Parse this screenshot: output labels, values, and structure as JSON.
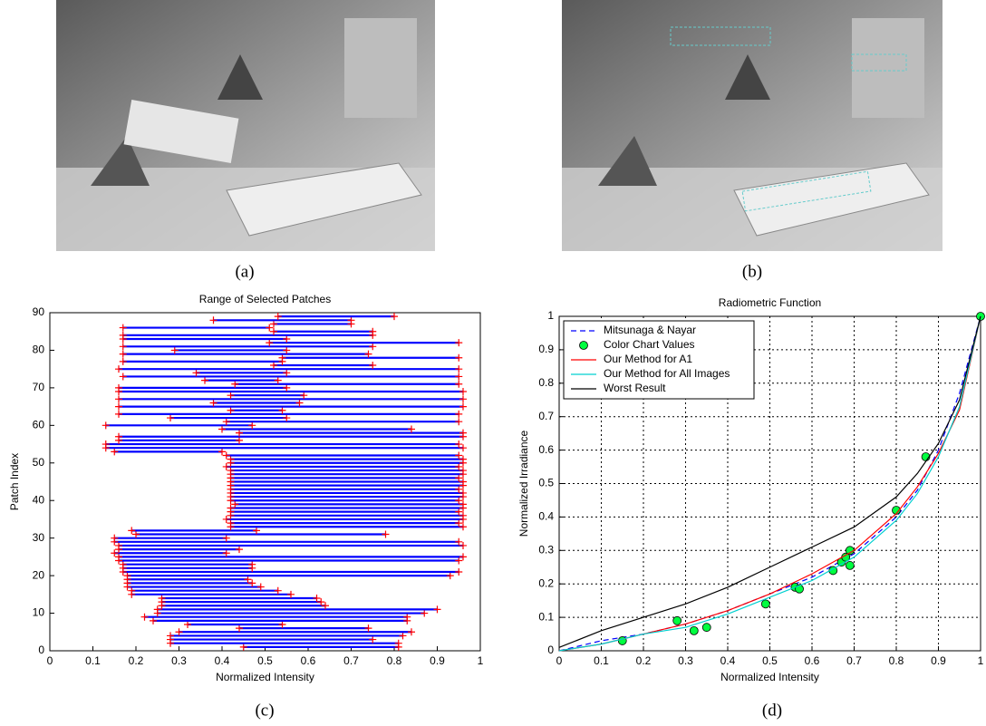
{
  "captions": [
    "(a)",
    "(b)",
    "(c)",
    "(d)"
  ],
  "chart_data": [
    {
      "type": "range",
      "title": "Range of Selected Patches",
      "xlabel": "Normalized Intensity",
      "ylabel": "Patch Index",
      "xlim": [
        0,
        1
      ],
      "xticks": [
        0,
        0.1,
        0.2,
        0.3,
        0.4,
        0.5,
        0.6,
        0.7,
        0.8,
        0.9,
        1
      ],
      "ylim": [
        0,
        90
      ],
      "yticks": [
        0,
        10,
        20,
        30,
        40,
        50,
        60,
        70,
        80,
        90
      ],
      "grid": false,
      "color": "#0000ff",
      "marker_color": "#ff0000",
      "y": [
        1,
        2,
        3,
        4,
        5,
        6,
        7,
        8,
        9,
        10,
        11,
        12,
        13,
        14,
        15,
        16,
        17,
        18,
        19,
        20,
        21,
        22,
        23,
        24,
        25,
        26,
        27,
        28,
        29,
        30,
        31,
        32,
        33,
        34,
        35,
        36,
        37,
        38,
        39,
        40,
        41,
        42,
        43,
        44,
        45,
        46,
        47,
        48,
        49,
        50,
        51,
        52,
        53,
        54,
        55,
        56,
        57,
        58,
        59,
        60,
        61,
        62,
        63,
        64,
        65,
        66,
        67,
        68,
        69,
        70,
        71,
        72,
        73,
        74,
        75,
        76,
        77,
        78,
        79,
        80,
        81,
        82,
        83,
        84,
        85,
        86,
        87,
        88,
        89
      ],
      "min": [
        0.45,
        0.28,
        0.28,
        0.28,
        0.3,
        0.44,
        0.32,
        0.24,
        0.22,
        0.25,
        0.25,
        0.26,
        0.26,
        0.26,
        0.19,
        0.19,
        0.18,
        0.18,
        0.18,
        0.18,
        0.17,
        0.17,
        0.17,
        0.16,
        0.16,
        0.15,
        0.16,
        0.16,
        0.15,
        0.15,
        0.2,
        0.19,
        0.42,
        0.42,
        0.41,
        0.42,
        0.42,
        0.42,
        0.43,
        0.42,
        0.42,
        0.42,
        0.42,
        0.42,
        0.42,
        0.42,
        0.42,
        0.42,
        0.41,
        0.42,
        0.42,
        0.41,
        0.15,
        0.13,
        0.13,
        0.16,
        0.16,
        0.44,
        0.4,
        0.13,
        0.41,
        0.28,
        0.16,
        0.42,
        0.16,
        0.38,
        0.16,
        0.42,
        0.16,
        0.16,
        0.43,
        0.36,
        0.17,
        0.34,
        0.16,
        0.52,
        0.17,
        0.54,
        0.17,
        0.29,
        0.17,
        0.51,
        0.17,
        0.17,
        0.52,
        0.17,
        0.52,
        0.38,
        0.53
      ],
      "max": [
        0.81,
        0.81,
        0.75,
        0.82,
        0.84,
        0.74,
        0.54,
        0.83,
        0.83,
        0.87,
        0.9,
        0.64,
        0.63,
        0.62,
        0.56,
        0.53,
        0.49,
        0.47,
        0.46,
        0.93,
        0.95,
        0.47,
        0.47,
        0.95,
        0.96,
        0.41,
        0.44,
        0.96,
        0.95,
        0.41,
        0.78,
        0.48,
        0.96,
        0.95,
        0.96,
        0.96,
        0.95,
        0.96,
        0.96,
        0.95,
        0.96,
        0.96,
        0.95,
        0.96,
        0.96,
        0.95,
        0.96,
        0.96,
        0.95,
        0.96,
        0.96,
        0.95,
        0.4,
        0.96,
        0.95,
        0.44,
        0.96,
        0.96,
        0.84,
        0.47,
        0.95,
        0.55,
        0.95,
        0.54,
        0.96,
        0.58,
        0.96,
        0.59,
        0.96,
        0.55,
        0.95,
        0.53,
        0.95,
        0.55,
        0.95,
        0.75,
        0.54,
        0.95,
        0.74,
        0.55,
        0.75,
        0.95,
        0.55,
        0.75,
        0.75,
        0.51,
        0.7,
        0.7,
        0.8
      ]
    },
    {
      "type": "line",
      "title": "Radiometric Function",
      "xlabel": "Normalized Intensity",
      "ylabel": "Normalized Irradiance",
      "xlim": [
        0,
        1
      ],
      "xticks": [
        0,
        0.1,
        0.2,
        0.3,
        0.4,
        0.5,
        0.6,
        0.7,
        0.8,
        0.9,
        1
      ],
      "ylim": [
        0,
        1
      ],
      "yticks": [
        0,
        0.1,
        0.2,
        0.3,
        0.4,
        0.5,
        0.6,
        0.7,
        0.8,
        0.9,
        1
      ],
      "grid": true,
      "legend": "upper left",
      "series": [
        {
          "name": "Mitsunaga & Nayar",
          "color": "#0000ff",
          "style": "dashed",
          "x": [
            0,
            0.1,
            0.2,
            0.3,
            0.4,
            0.5,
            0.6,
            0.7,
            0.8,
            0.85,
            0.9,
            0.95,
            1
          ],
          "values": [
            0,
            0.03,
            0.05,
            0.08,
            0.12,
            0.17,
            0.22,
            0.29,
            0.4,
            0.48,
            0.6,
            0.77,
            1
          ]
        },
        {
          "name": "Color Chart Values",
          "color": "#00ff40",
          "style": "markers",
          "x": [
            0.15,
            0.28,
            0.32,
            0.35,
            0.49,
            0.56,
            0.57,
            0.65,
            0.67,
            0.68,
            0.69,
            0.69,
            0.8,
            0.87,
            1
          ],
          "values": [
            0.03,
            0.09,
            0.06,
            0.07,
            0.14,
            0.19,
            0.185,
            0.24,
            0.265,
            0.28,
            0.3,
            0.255,
            0.42,
            0.58,
            1
          ]
        },
        {
          "name": "Our Method for A1",
          "color": "#ff0000",
          "style": "solid",
          "x": [
            0,
            0.1,
            0.2,
            0.3,
            0.4,
            0.5,
            0.6,
            0.7,
            0.8,
            0.85,
            0.9,
            0.95,
            1
          ],
          "values": [
            0,
            0.02,
            0.05,
            0.08,
            0.12,
            0.17,
            0.23,
            0.3,
            0.41,
            0.49,
            0.59,
            0.72,
            1
          ]
        },
        {
          "name": "Our Method for All Images",
          "color": "#00d0d0",
          "style": "solid",
          "x": [
            0,
            0.1,
            0.2,
            0.3,
            0.4,
            0.5,
            0.6,
            0.7,
            0.8,
            0.85,
            0.9,
            0.95,
            1
          ],
          "values": [
            0,
            0.02,
            0.05,
            0.07,
            0.11,
            0.16,
            0.21,
            0.28,
            0.39,
            0.47,
            0.58,
            0.73,
            1
          ]
        },
        {
          "name": "Worst Result",
          "color": "#000000",
          "style": "solid",
          "x": [
            0,
            0.1,
            0.2,
            0.3,
            0.4,
            0.5,
            0.6,
            0.7,
            0.8,
            0.85,
            0.9,
            0.95,
            1
          ],
          "values": [
            0.01,
            0.06,
            0.1,
            0.14,
            0.19,
            0.25,
            0.31,
            0.37,
            0.46,
            0.53,
            0.62,
            0.75,
            1
          ]
        }
      ]
    }
  ]
}
